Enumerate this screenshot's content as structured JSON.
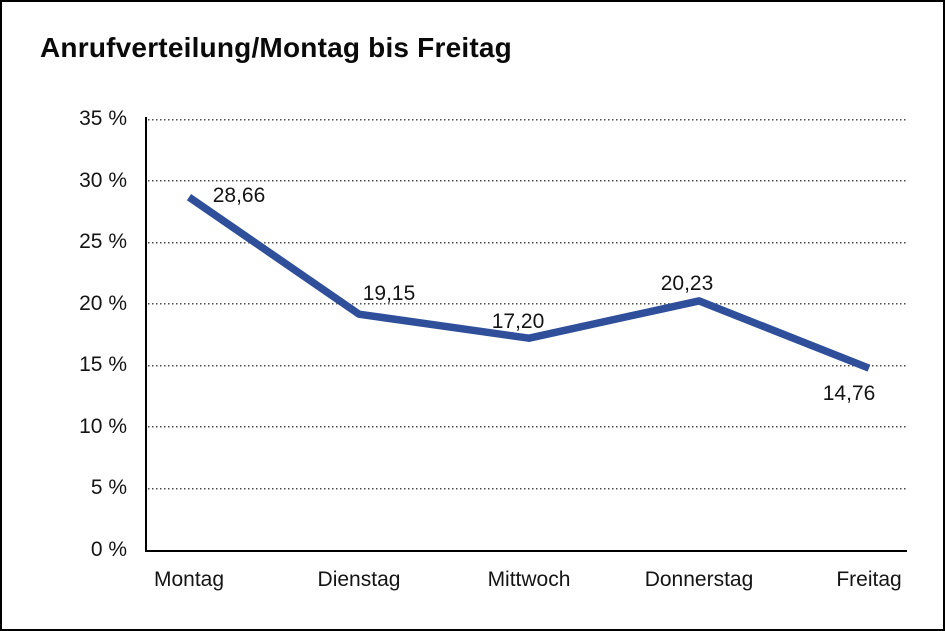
{
  "window": {
    "background": "#ffffff",
    "border_color": "#000000"
  },
  "chart_data": {
    "type": "line",
    "title": "Anrufverteilung/Montag bis Freitag",
    "categories": [
      "Montag",
      "Dienstag",
      "Mittwoch",
      "Donnerstag",
      "Freitag"
    ],
    "values": [
      28.66,
      19.15,
      17.2,
      20.23,
      14.76
    ],
    "value_labels": [
      "28,66",
      "19,15",
      "17,20",
      "20,23",
      "14,76"
    ],
    "xlabel": "",
    "ylabel": "",
    "ylim": [
      0,
      35
    ],
    "y_tick_step": 5,
    "y_tick_labels": [
      "0 %",
      "5 %",
      "10 %",
      "15 %",
      "20 %",
      "25 %",
      "30 %",
      "35 %"
    ],
    "grid": "horizontal-dotted",
    "legend": "none",
    "line_color": "#2F4F9B",
    "text_color": "#141414",
    "decimal_separator": ","
  }
}
